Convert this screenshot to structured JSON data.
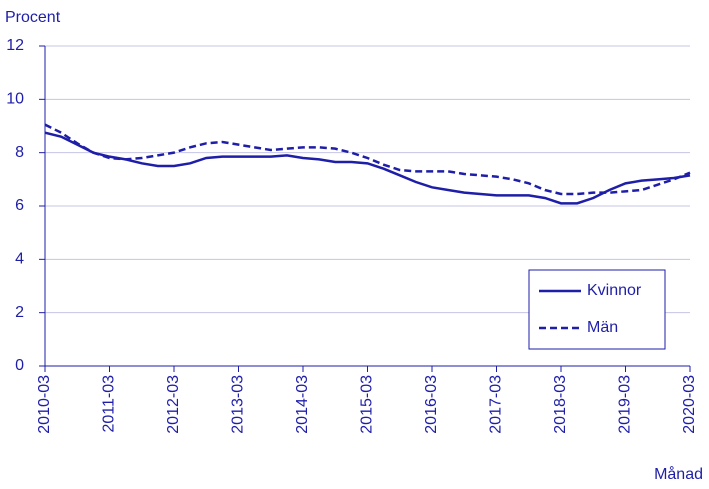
{
  "chart_data": {
    "type": "line",
    "y_label": "Procent",
    "x_label": "Månad",
    "x": [
      "2010-03",
      "2010-06",
      "2010-09",
      "2010-12",
      "2011-03",
      "2011-06",
      "2011-09",
      "2011-12",
      "2012-03",
      "2012-06",
      "2012-09",
      "2012-12",
      "2013-03",
      "2013-06",
      "2013-09",
      "2013-12",
      "2014-03",
      "2014-06",
      "2014-09",
      "2014-12",
      "2015-03",
      "2015-06",
      "2015-09",
      "2015-12",
      "2016-03",
      "2016-06",
      "2016-09",
      "2016-12",
      "2017-03",
      "2017-06",
      "2017-09",
      "2017-12",
      "2018-03",
      "2018-06",
      "2018-09",
      "2018-12",
      "2019-03",
      "2019-06",
      "2019-09",
      "2019-12",
      "2020-03"
    ],
    "series": [
      {
        "name": "Kvinnor",
        "color": "#1e1ea8",
        "line_style": "solid",
        "values": [
          8.75,
          8.6,
          8.3,
          8.0,
          7.85,
          7.75,
          7.6,
          7.5,
          7.5,
          7.6,
          7.8,
          7.85,
          7.85,
          7.85,
          7.85,
          7.9,
          7.8,
          7.75,
          7.65,
          7.65,
          7.6,
          7.4,
          7.15,
          6.9,
          6.7,
          6.6,
          6.5,
          6.45,
          6.4,
          6.4,
          6.4,
          6.3,
          6.1,
          6.1,
          6.3,
          6.6,
          6.85,
          6.95,
          7.0,
          7.05,
          7.15
        ]
      },
      {
        "name": "Män",
        "color": "#1e1ea8",
        "line_style": "dashed",
        "values": [
          9.05,
          8.75,
          8.35,
          8.0,
          7.8,
          7.75,
          7.8,
          7.9,
          8.0,
          8.2,
          8.35,
          8.4,
          8.3,
          8.2,
          8.1,
          8.15,
          8.2,
          8.2,
          8.15,
          8.0,
          7.8,
          7.55,
          7.35,
          7.3,
          7.3,
          7.3,
          7.2,
          7.15,
          7.1,
          7.0,
          6.85,
          6.6,
          6.45,
          6.45,
          6.5,
          6.5,
          6.55,
          6.6,
          6.8,
          7.0,
          7.25
        ]
      }
    ],
    "xlim": [
      "2010-03",
      "2020-03"
    ],
    "xticks": [
      "2010-03",
      "2011-03",
      "2012-03",
      "2013-03",
      "2014-03",
      "2015-03",
      "2016-03",
      "2017-03",
      "2018-03",
      "2019-03",
      "2020-03"
    ],
    "ylim": [
      0,
      12
    ],
    "yticks": [
      0,
      2,
      4,
      6,
      8,
      10,
      12
    ],
    "grid": true,
    "legend": "lower-right"
  }
}
